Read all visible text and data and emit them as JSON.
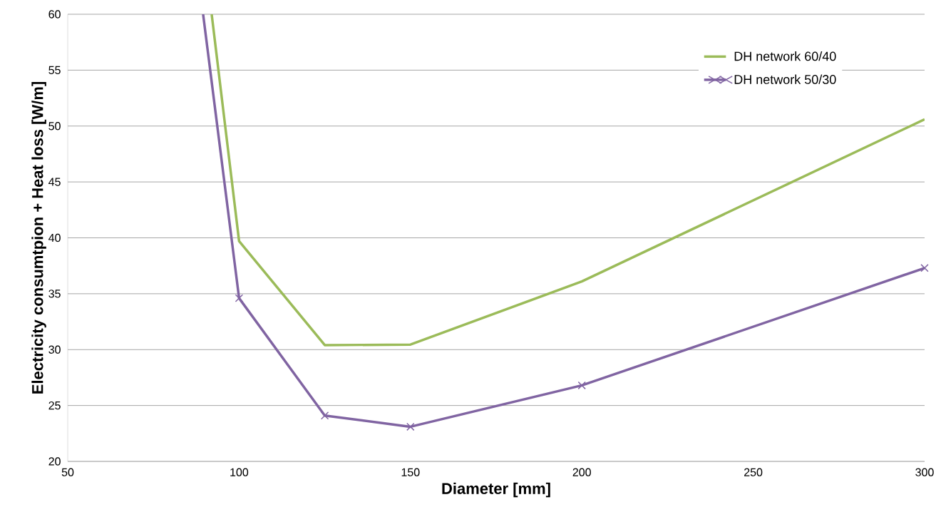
{
  "chart_data": {
    "type": "line",
    "xlabel": "Diameter [mm]",
    "ylabel": "Electricity consumtpion + Heat loss [W/m]",
    "series": [
      {
        "name": "DH network 60/40",
        "color": "#9bbb59",
        "marker": "none",
        "x": [
          92,
          100,
          125,
          150,
          200,
          300
        ],
        "values": [
          60,
          39.7,
          30.4,
          30.45,
          36.1,
          50.6
        ]
      },
      {
        "name": "DH network 50/30",
        "color": "#8064a2",
        "marker": "cross",
        "x": [
          89.5,
          100,
          125,
          150,
          200,
          300
        ],
        "values": [
          60,
          34.6,
          24.1,
          23.1,
          26.8,
          37.3
        ]
      }
    ],
    "xlim": [
      50,
      300
    ],
    "xticks": [
      50,
      100,
      150,
      200,
      250,
      300
    ],
    "ylim": [
      20,
      60
    ],
    "yticks": [
      20,
      25,
      30,
      35,
      40,
      45,
      50,
      55,
      60
    ],
    "grid": "y",
    "legend": "top right"
  }
}
